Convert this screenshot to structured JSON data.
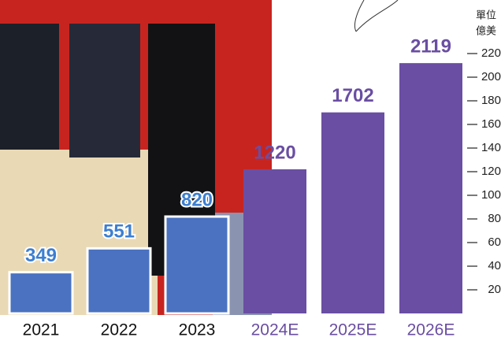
{
  "chart_data": {
    "type": "bar",
    "categories": [
      "2021",
      "2022",
      "2023",
      "2024E",
      "2025E",
      "2026E"
    ],
    "values": [
      349,
      551,
      820,
      1220,
      1702,
      2119
    ],
    "colors": [
      "#4a72c0",
      "#4a72c0",
      "#4a72c0",
      "#6a4ea3",
      "#6a4ea3",
      "#6a4ea3"
    ],
    "unit_lines": [
      "單位",
      "億美"
    ],
    "ylim": [
      0,
      2200
    ],
    "yticks": [
      {
        "value": 200,
        "label": "20"
      },
      {
        "value": 400,
        "label": "40"
      },
      {
        "value": 600,
        "label": "60"
      },
      {
        "value": 800,
        "label": "80"
      },
      {
        "value": 1000,
        "label": "100"
      },
      {
        "value": 1200,
        "label": "120"
      },
      {
        "value": 1400,
        "label": "140"
      },
      {
        "value": 1600,
        "label": "160"
      },
      {
        "value": 1800,
        "label": "180"
      },
      {
        "value": 2000,
        "label": "200"
      },
      {
        "value": 2200,
        "label": "220"
      }
    ]
  }
}
